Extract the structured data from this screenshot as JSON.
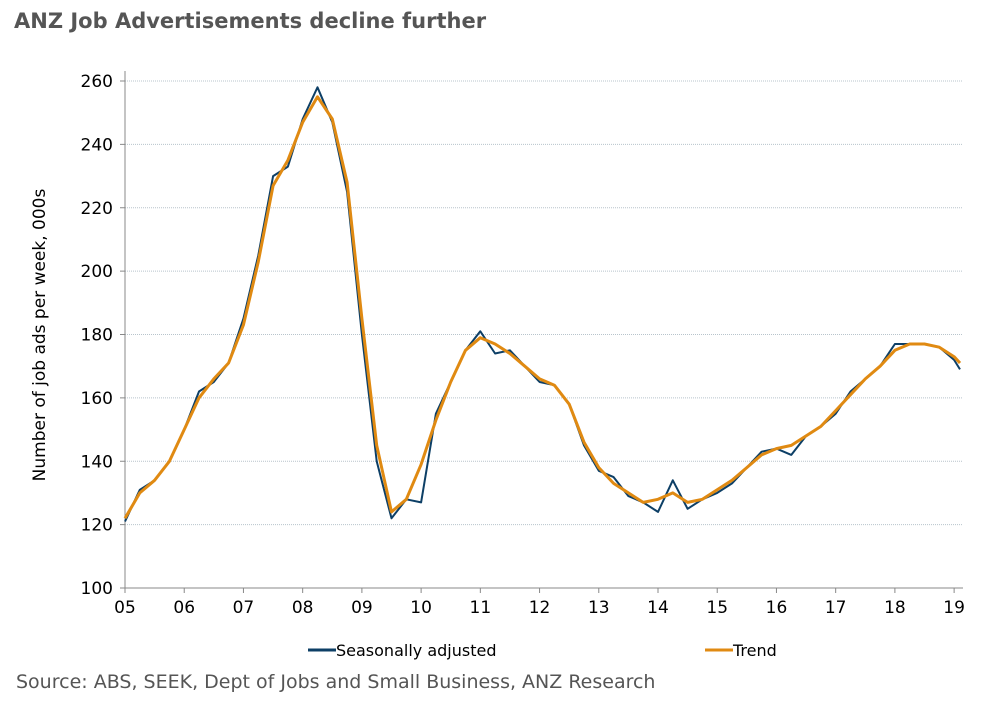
{
  "chart_data": {
    "type": "line",
    "title": "ANZ Job Advertisements decline further",
    "y_label": "Number of job ads per week, 000s",
    "source": "Source: ABS, SEEK, Dept of Jobs and Small Business, ANZ Research",
    "x": [
      2005,
      2005.25,
      2005.5,
      2005.75,
      2006,
      2006.25,
      2006.5,
      2006.75,
      2007,
      2007.25,
      2007.5,
      2007.75,
      2008,
      2008.25,
      2008.5,
      2008.75,
      2009,
      2009.25,
      2009.5,
      2009.75,
      2010,
      2010.25,
      2010.5,
      2010.75,
      2011,
      2011.25,
      2011.5,
      2011.75,
      2012,
      2012.25,
      2012.5,
      2012.75,
      2013,
      2013.25,
      2013.5,
      2013.75,
      2014,
      2014.25,
      2014.5,
      2014.75,
      2015,
      2015.25,
      2015.5,
      2015.75,
      2016,
      2016.25,
      2016.5,
      2016.75,
      2017,
      2017.25,
      2017.5,
      2017.75,
      2018,
      2018.25,
      2018.5,
      2018.75,
      2019,
      2019.1
    ],
    "series": [
      {
        "name": "Seasonally adjusted",
        "color": "#0d3f66",
        "values": [
          121,
          131,
          134,
          140,
          150,
          162,
          165,
          171,
          185,
          205,
          230,
          233,
          248,
          258,
          247,
          225,
          180,
          140,
          122,
          128,
          127,
          155,
          165,
          175,
          181,
          174,
          175,
          170,
          165,
          164,
          158,
          145,
          137,
          135,
          129,
          127,
          124,
          134,
          125,
          128,
          130,
          133,
          138,
          143,
          144,
          142,
          148,
          151,
          155,
          162,
          166,
          170,
          177,
          177,
          177,
          176,
          172,
          169
        ]
      },
      {
        "name": "Trend",
        "color": "#e08a12",
        "values": [
          122,
          130,
          134,
          140,
          150,
          160,
          166,
          171,
          183,
          203,
          227,
          235,
          247,
          255,
          248,
          228,
          185,
          145,
          124,
          128,
          139,
          153,
          165,
          175,
          179,
          177,
          174,
          170,
          166,
          164,
          158,
          146,
          138,
          133,
          130,
          127,
          128,
          130,
          127,
          128,
          131,
          134,
          138,
          142,
          144,
          145,
          148,
          151,
          156,
          161,
          166,
          170,
          175,
          177,
          177,
          176,
          173,
          171
        ]
      }
    ],
    "xlim": [
      2005,
      2019.15
    ],
    "xticks": [
      {
        "value": 2005,
        "label": "05"
      },
      {
        "value": 2006,
        "label": "06"
      },
      {
        "value": 2007,
        "label": "07"
      },
      {
        "value": 2008,
        "label": "08"
      },
      {
        "value": 2009,
        "label": "09"
      },
      {
        "value": 2010,
        "label": "10"
      },
      {
        "value": 2011,
        "label": "11"
      },
      {
        "value": 2012,
        "label": "12"
      },
      {
        "value": 2013,
        "label": "13"
      },
      {
        "value": 2014,
        "label": "14"
      },
      {
        "value": 2015,
        "label": "15"
      },
      {
        "value": 2016,
        "label": "16"
      },
      {
        "value": 2017,
        "label": "17"
      },
      {
        "value": 2018,
        "label": "18"
      },
      {
        "value": 2019,
        "label": "19"
      }
    ],
    "ylim": [
      100,
      260
    ],
    "yticks": [
      100,
      120,
      140,
      160,
      180,
      200,
      220,
      240,
      260
    ],
    "grid": true
  }
}
